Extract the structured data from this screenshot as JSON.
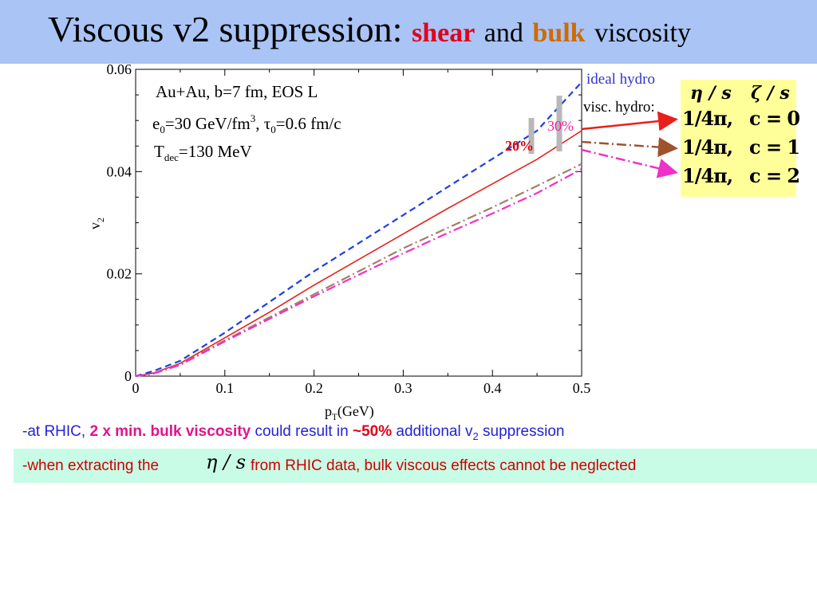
{
  "slide": {
    "title_main": "Viscous v2 suppression:",
    "title_shear": "shear",
    "title_and": "and",
    "title_bulk": "bulk",
    "title_viscosity": "viscosity"
  },
  "legend": {
    "header_eta": "η / s",
    "header_zeta": "ζ / s",
    "rows": [
      {
        "eta": "1/4π,",
        "zeta": "c = 0"
      },
      {
        "eta": "1/4π,",
        "zeta": "c = 1"
      },
      {
        "eta": "1/4π,",
        "zeta": "c = 2"
      }
    ]
  },
  "bullets": {
    "l1_a": "-at RHIC,",
    "l1_b": "2 x min. bulk viscosity",
    "l1_c": "could result in",
    "l1_d": "~50%",
    "l1_e": "additional v",
    "l1_sub": "2",
    "l1_f": "suppression",
    "l2_a": "-when extracting the",
    "l2_eta": "η / s",
    "l2_b": "from RHIC data, bulk viscous effects cannot be neglected"
  },
  "chart_data": {
    "type": "line",
    "xlabel": "p",
    "xlabel_sub": "T",
    "xlabel_unit": "(GeV)",
    "ylabel": "v",
    "ylabel_sub": "2",
    "xlim": [
      0,
      0.5
    ],
    "ylim": [
      0,
      0.06
    ],
    "x_ticks": [
      "0",
      "0.1",
      "0.2",
      "0.3",
      "0.4",
      "0.5"
    ],
    "y_ticks": [
      "0",
      "0.02",
      "0.04",
      "0.06"
    ],
    "annotations": {
      "line1": "Au+Au, b=7 fm, EOS L",
      "line2_a": "e",
      "line2_sub": "0",
      "line2_b": "=30 GeV/fm",
      "line2_sup": "3",
      "line2_c": ", τ",
      "line2_sub2": "0",
      "line2_d": "=0.6 fm/c",
      "line3_a": "T",
      "line3_sub": "dec",
      "line3_b": "=130 MeV",
      "pct20": "20%",
      "pct30": "30%",
      "ideal_label": "ideal hydro",
      "visc_label": "visc. hydro:"
    },
    "series": [
      {
        "color": "#1f3fe0",
        "dash": "dashed",
        "x": [
          0,
          0.02,
          0.05,
          0.1,
          0.15,
          0.2,
          0.25,
          0.3,
          0.35,
          0.4,
          0.45,
          0.5
        ],
        "y": [
          0,
          0.001,
          0.003,
          0.0085,
          0.0145,
          0.0205,
          0.026,
          0.0315,
          0.037,
          0.0425,
          0.048,
          0.0575
        ]
      },
      {
        "color": "#e8201c",
        "dash": "solid",
        "x": [
          0,
          0.02,
          0.05,
          0.1,
          0.15,
          0.2,
          0.25,
          0.3,
          0.35,
          0.4,
          0.45,
          0.5
        ],
        "y": [
          0,
          0.0006,
          0.0025,
          0.0075,
          0.0125,
          0.0178,
          0.0228,
          0.0278,
          0.0328,
          0.0376,
          0.0424,
          0.048
        ]
      },
      {
        "color": "#a0806a",
        "dash": "dashdot",
        "x": [
          0,
          0.02,
          0.05,
          0.1,
          0.15,
          0.2,
          0.25,
          0.3,
          0.35,
          0.4,
          0.45,
          0.5
        ],
        "y": [
          0,
          0.0005,
          0.0023,
          0.007,
          0.0115,
          0.016,
          0.0205,
          0.025,
          0.029,
          0.033,
          0.0372,
          0.0415
        ]
      },
      {
        "color": "#f030c8",
        "dash": "dashdot",
        "x": [
          0,
          0.02,
          0.05,
          0.1,
          0.15,
          0.2,
          0.25,
          0.3,
          0.35,
          0.4,
          0.45,
          0.5
        ],
        "y": [
          0,
          0.0005,
          0.0022,
          0.0068,
          0.0112,
          0.0156,
          0.0198,
          0.024,
          0.028,
          0.0318,
          0.0358,
          0.0405
        ]
      }
    ]
  }
}
